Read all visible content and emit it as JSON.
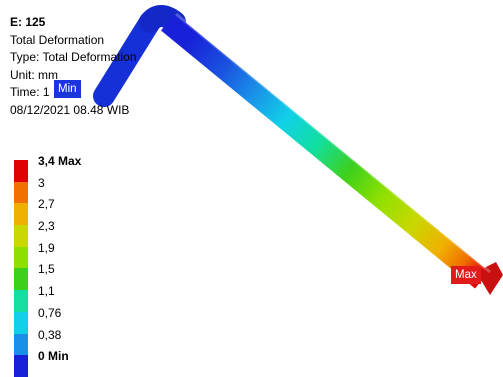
{
  "result_info": {
    "title": "E: 125",
    "name": "Total Deformation",
    "type": "Type: Total Deformation",
    "unit": "Unit: mm",
    "time": "Time: 1",
    "date": "08/12/2021 08.48 WIB"
  },
  "legend": {
    "entries": [
      {
        "label": "3,4 Max",
        "color": "#e00000",
        "bold": true
      },
      {
        "label": "3",
        "color": "#f07000"
      },
      {
        "label": "2,7",
        "color": "#f0b000"
      },
      {
        "label": "2,3",
        "color": "#c8d800"
      },
      {
        "label": "1,9",
        "color": "#8fe000"
      },
      {
        "label": "1,5",
        "color": "#3cd01c"
      },
      {
        "label": "1,1",
        "color": "#12dfa0"
      },
      {
        "label": "0,76",
        "color": "#11d0e8"
      },
      {
        "label": "0,38",
        "color": "#1a8fe8"
      },
      {
        "label": "0 Min",
        "color": "#1820d8",
        "bold": true
      }
    ]
  },
  "probes": {
    "min_label": "Min",
    "max_label": "Max"
  }
}
